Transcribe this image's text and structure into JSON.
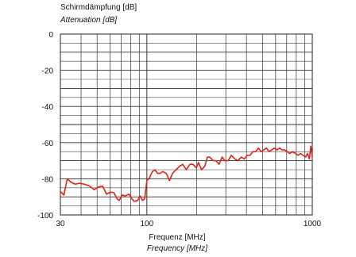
{
  "chart_data": {
    "type": "line",
    "ylabel": "Schirmdämpfung [dB]",
    "ylabel_en": "Attenuation [dB]",
    "xlabel": "Frequenz [MHz]",
    "xlabel_en": "Frequency [MHz]",
    "xscale": "log",
    "xlim": [
      30,
      1000
    ],
    "ylim": [
      -100,
      0
    ],
    "x_ticks": [
      {
        "value": 30,
        "label": "30"
      },
      {
        "value": 100,
        "label": "100"
      },
      {
        "value": 1000,
        "label": "1000"
      }
    ],
    "y_ticks": [
      {
        "value": 0,
        "label": "0"
      },
      {
        "value": -20,
        "label": "-20"
      },
      {
        "value": -40,
        "label": "-40"
      },
      {
        "value": -60,
        "label": "-60"
      },
      {
        "value": -80,
        "label": "-80"
      },
      {
        "value": -100,
        "label": "-100"
      }
    ],
    "grid": true,
    "series": [
      {
        "color": "#e32119",
        "points": [
          [
            30,
            -87
          ],
          [
            31.5,
            -89
          ],
          [
            33,
            -80
          ],
          [
            35,
            -82
          ],
          [
            37,
            -83
          ],
          [
            39,
            -82.5
          ],
          [
            42,
            -83
          ],
          [
            45,
            -84
          ],
          [
            48,
            -86
          ],
          [
            51,
            -84.5
          ],
          [
            54,
            -84
          ],
          [
            57,
            -88.5
          ],
          [
            60,
            -87.5
          ],
          [
            63,
            -87.5
          ],
          [
            66,
            -91
          ],
          [
            68,
            -92
          ],
          [
            71,
            -89
          ],
          [
            74,
            -89.5
          ],
          [
            78,
            -88.5
          ],
          [
            81,
            -91
          ],
          [
            84,
            -92.5
          ],
          [
            88,
            -92
          ],
          [
            91,
            -89.5
          ],
          [
            94,
            -92
          ],
          [
            97,
            -91
          ],
          [
            100,
            -81
          ],
          [
            103,
            -80
          ],
          [
            108,
            -76
          ],
          [
            112,
            -75
          ],
          [
            116,
            -77
          ],
          [
            120,
            -77
          ],
          [
            125,
            -76
          ],
          [
            131,
            -77
          ],
          [
            137,
            -81
          ],
          [
            143,
            -77
          ],
          [
            150,
            -75
          ],
          [
            158,
            -73
          ],
          [
            165,
            -72
          ],
          [
            173,
            -75
          ],
          [
            182,
            -72
          ],
          [
            190,
            -72
          ],
          [
            199,
            -74
          ],
          [
            205,
            -71
          ],
          [
            214,
            -75
          ],
          [
            224,
            -73
          ],
          [
            232,
            -68
          ],
          [
            240,
            -68
          ],
          [
            252,
            -70
          ],
          [
            262,
            -70
          ],
          [
            273,
            -72
          ],
          [
            285,
            -68
          ],
          [
            296,
            -70
          ],
          [
            310,
            -70
          ],
          [
            324,
            -67
          ],
          [
            340,
            -69
          ],
          [
            355,
            -70
          ],
          [
            372,
            -68
          ],
          [
            388,
            -69
          ],
          [
            405,
            -67
          ],
          [
            420,
            -67
          ],
          [
            438,
            -65
          ],
          [
            455,
            -65
          ],
          [
            472,
            -63
          ],
          [
            490,
            -65
          ],
          [
            510,
            -64
          ],
          [
            528,
            -63
          ],
          [
            548,
            -65
          ],
          [
            568,
            -64
          ],
          [
            590,
            -63
          ],
          [
            612,
            -64
          ],
          [
            635,
            -63
          ],
          [
            655,
            -64
          ],
          [
            680,
            -64
          ],
          [
            705,
            -65
          ],
          [
            730,
            -66
          ],
          [
            760,
            -65
          ],
          [
            790,
            -66
          ],
          [
            820,
            -67
          ],
          [
            850,
            -66
          ],
          [
            880,
            -67
          ],
          [
            910,
            -68
          ],
          [
            935,
            -66
          ],
          [
            960,
            -69
          ],
          [
            980,
            -62
          ],
          [
            1000,
            -68
          ]
        ]
      }
    ]
  }
}
